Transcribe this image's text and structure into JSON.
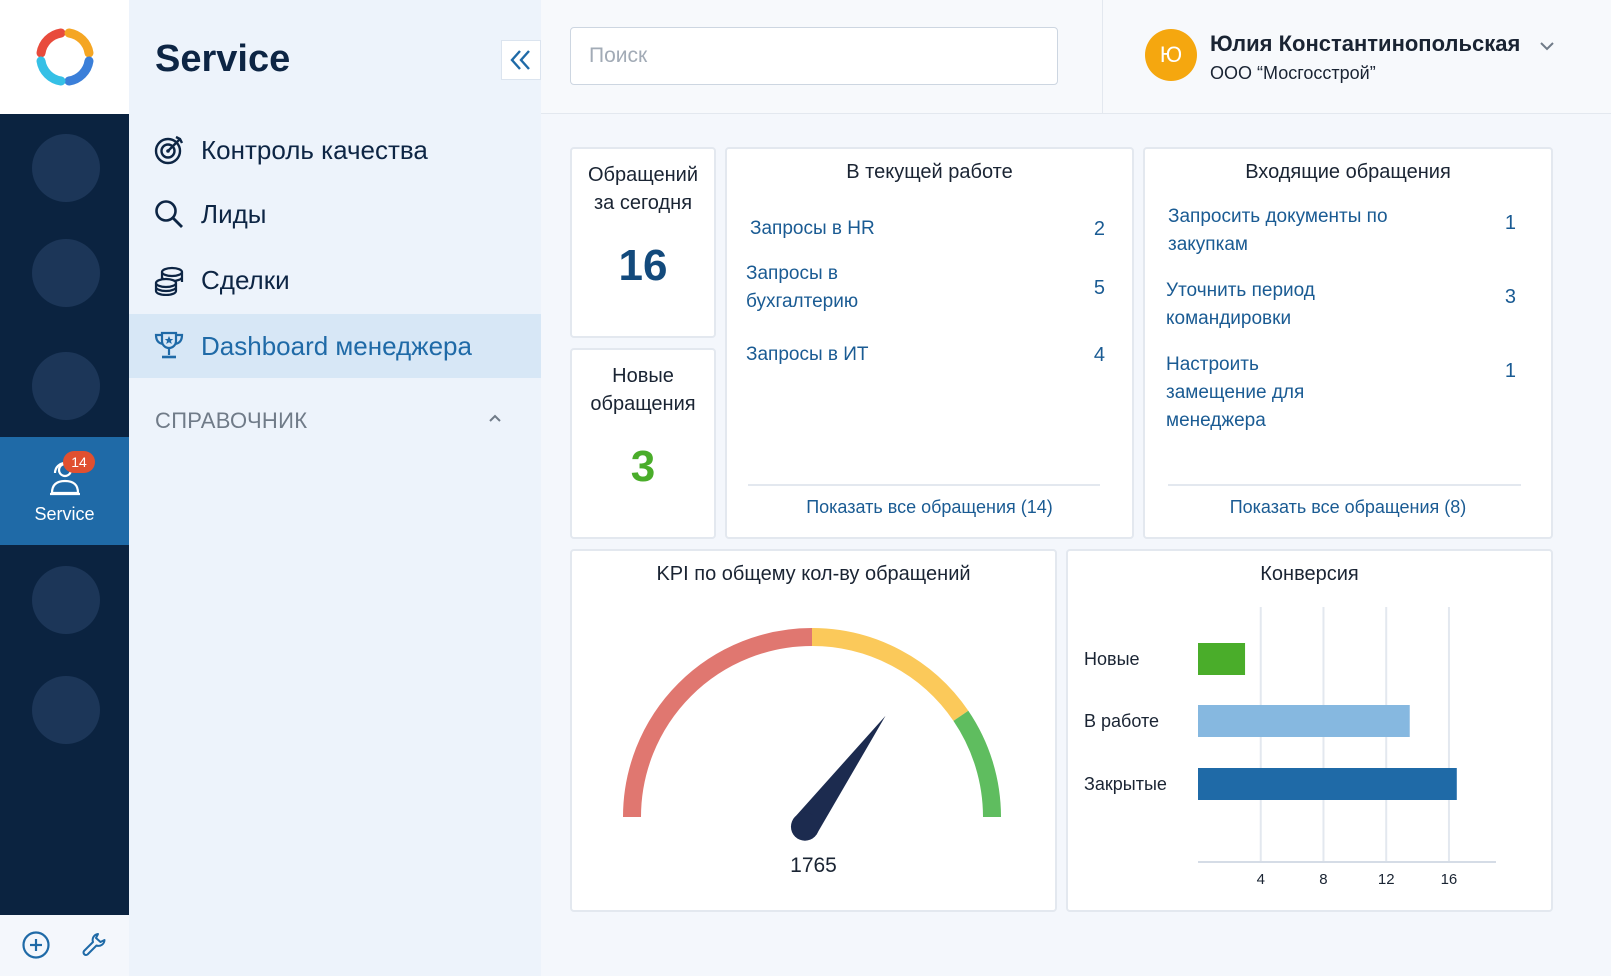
{
  "rail": {
    "active_item": {
      "label": "Service",
      "badge": "14"
    }
  },
  "nav": {
    "title": "Service",
    "items": [
      {
        "label": "Контроль качества",
        "icon": "target-icon"
      },
      {
        "label": "Лиды",
        "icon": "search-icon"
      },
      {
        "label": "Сделки",
        "icon": "coins-icon"
      },
      {
        "label": "Dashboard менеджера",
        "icon": "trophy-icon",
        "active": true
      }
    ],
    "section": {
      "label": "СПРАВОЧНИК"
    }
  },
  "header": {
    "search_placeholder": "Поиск",
    "user": {
      "initial": "Ю",
      "name": "Юлия Константинопольская",
      "org": "ООО “Мосгосстрой”"
    }
  },
  "dashboard": {
    "today": {
      "label": "Обращений за сегодня",
      "value": "16"
    },
    "new": {
      "label": "Новые обращения",
      "value": "3"
    },
    "in_work": {
      "title": "В текущей работе",
      "rows": [
        {
          "label": "Запросы в HR",
          "count": "2"
        },
        {
          "label": "Запросы в бухгалтерию",
          "count": "5"
        },
        {
          "label": "Запросы в ИТ",
          "count": "4"
        }
      ],
      "link": "Показать все обращения (14)"
    },
    "incoming": {
      "title": "Входящие обращения",
      "rows": [
        {
          "label": "Запросить документы по закупкам",
          "count": "1"
        },
        {
          "label": "Уточнить период командировки",
          "count": "3"
        },
        {
          "label": "Настроить замещение для менеджера",
          "count": "1"
        }
      ],
      "link": "Показать все обращения (8)"
    },
    "kpi": {
      "title": "KPI по общему кол-ву обращений",
      "value": "1765",
      "gauge_fraction": 0.7
    },
    "conversion": {
      "title": "Конверсия"
    }
  },
  "colors": {
    "rail_bg": "#0b2340",
    "accent": "#1f6aa7",
    "link": "#1a5b93",
    "green": "#4aad2a",
    "gauge_red": "#e07770",
    "gauge_yellow": "#fbc95a",
    "gauge_green": "#5fbd5f"
  },
  "chart_data": {
    "type": "bar",
    "orientation": "horizontal",
    "title": "Конверсия",
    "categories": [
      "Новые",
      "В работе",
      "Закрытые"
    ],
    "values": [
      3,
      13.5,
      16.5
    ],
    "colors": [
      "#4aad2a",
      "#86b8e0",
      "#1f6aa7"
    ],
    "xticks": [
      4,
      8,
      12,
      16
    ],
    "xlim": [
      0,
      19
    ],
    "grid": true,
    "xlabel": "",
    "ylabel": ""
  }
}
